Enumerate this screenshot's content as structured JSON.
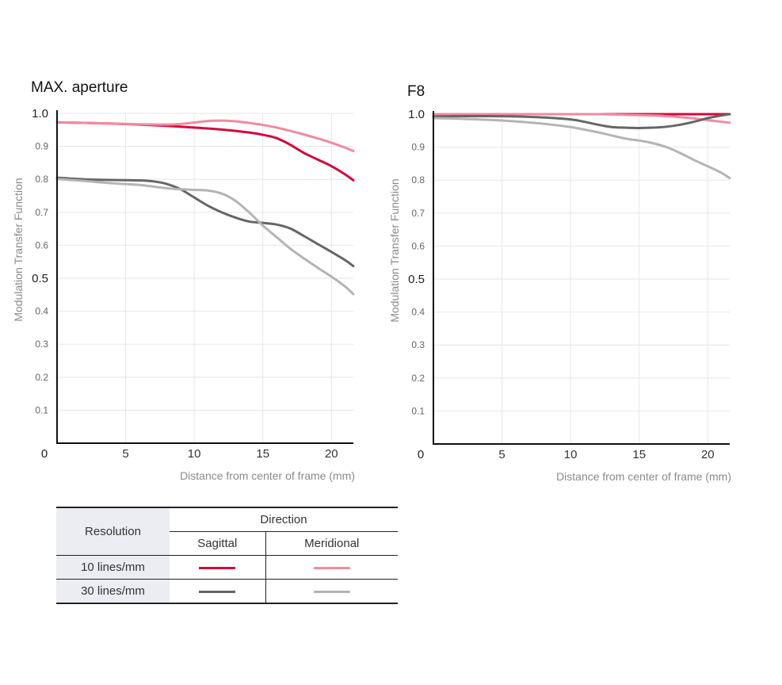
{
  "chart_data": [
    {
      "type": "line",
      "title": "MAX. aperture",
      "ylabel": "Modulation Transfer Function",
      "xlabel": "Distance from center of frame (mm)",
      "xlim": [
        0,
        21.6
      ],
      "ylim": [
        0,
        1.0
      ],
      "origin_label": "0",
      "x_ticks": [
        "5",
        "10",
        "15",
        "20"
      ],
      "y_ticks": [
        "0.1",
        "0.2",
        "0.3",
        "0.4",
        "0.5",
        "0.6",
        "0.7",
        "0.8",
        "0.9",
        "1.0"
      ],
      "grid": true,
      "series": [
        {
          "key": "s10",
          "color": "#d6083b",
          "x": [
            0,
            2,
            4,
            6,
            8,
            10,
            12,
            14,
            15,
            16,
            17,
            18,
            19,
            20,
            21,
            21.6
          ],
          "y": [
            0.973,
            0.971,
            0.969,
            0.966,
            0.962,
            0.957,
            0.951,
            0.942,
            0.935,
            0.925,
            0.905,
            0.88,
            0.86,
            0.84,
            0.815,
            0.797
          ]
        },
        {
          "key": "m10",
          "color": "#f18aa0",
          "x": [
            0,
            2,
            4,
            6,
            8,
            9,
            10,
            11,
            12,
            13,
            14,
            15,
            16,
            17,
            18,
            19,
            20,
            21,
            21.6
          ],
          "y": [
            0.973,
            0.971,
            0.969,
            0.967,
            0.966,
            0.968,
            0.972,
            0.977,
            0.978,
            0.976,
            0.971,
            0.965,
            0.957,
            0.947,
            0.936,
            0.924,
            0.911,
            0.896,
            0.886
          ]
        },
        {
          "key": "s30",
          "color": "#666666",
          "x": [
            0,
            2,
            4,
            6,
            7,
            8,
            9,
            10,
            11,
            12,
            13,
            14,
            15,
            16,
            17,
            18,
            19,
            20,
            21,
            21.6
          ],
          "y": [
            0.805,
            0.8,
            0.798,
            0.797,
            0.794,
            0.786,
            0.77,
            0.745,
            0.72,
            0.7,
            0.684,
            0.672,
            0.668,
            0.663,
            0.651,
            0.628,
            0.604,
            0.58,
            0.555,
            0.537
          ]
        },
        {
          "key": "m30",
          "color": "#b4b4b4",
          "x": [
            0,
            2,
            4,
            6,
            8,
            9,
            10,
            11,
            12,
            13,
            14,
            15,
            16,
            17,
            18,
            19,
            20,
            21,
            21.6
          ],
          "y": [
            0.801,
            0.795,
            0.788,
            0.783,
            0.773,
            0.77,
            0.768,
            0.766,
            0.757,
            0.735,
            0.7,
            0.66,
            0.625,
            0.59,
            0.56,
            0.532,
            0.505,
            0.475,
            0.452
          ]
        }
      ]
    },
    {
      "type": "line",
      "title": "F8",
      "ylabel": "Modulation Transfer Function",
      "xlabel": "Distance from center of frame (mm)",
      "xlim": [
        0,
        21.6
      ],
      "ylim": [
        0,
        1.0
      ],
      "origin_label": "0",
      "x_ticks": [
        "5",
        "10",
        "15",
        "20"
      ],
      "y_ticks": [
        "0.1",
        "0.2",
        "0.3",
        "0.4",
        "0.5",
        "0.6",
        "0.7",
        "0.8",
        "0.9",
        "1.0"
      ],
      "grid": true,
      "series": [
        {
          "key": "s10",
          "color": "#d6083b",
          "x": [
            0,
            5,
            10,
            15,
            20,
            21.6
          ],
          "y": [
            1.0,
            1.0,
            1.0,
            1.0,
            1.0,
            1.0
          ]
        },
        {
          "key": "m10",
          "color": "#f18aa0",
          "x": [
            0,
            5,
            10,
            12,
            14,
            16,
            17,
            18,
            19,
            20,
            21,
            21.6
          ],
          "y": [
            1.0,
            1.0,
            1.0,
            1.0,
            0.998,
            0.996,
            0.994,
            0.991,
            0.987,
            0.982,
            0.977,
            0.974
          ]
        },
        {
          "key": "s30",
          "color": "#666666",
          "x": [
            0,
            2,
            4,
            6,
            8,
            10,
            11,
            12,
            13,
            14,
            15,
            16,
            17,
            18,
            19,
            20,
            21,
            21.6
          ],
          "y": [
            0.993,
            0.994,
            0.994,
            0.993,
            0.99,
            0.984,
            0.977,
            0.968,
            0.961,
            0.959,
            0.958,
            0.959,
            0.962,
            0.968,
            0.977,
            0.988,
            0.996,
            1.0
          ]
        },
        {
          "key": "m30",
          "color": "#b4b4b4",
          "x": [
            0,
            2,
            4,
            6,
            8,
            10,
            12,
            14,
            15,
            16,
            17,
            18,
            19,
            20,
            21,
            21.6
          ],
          "y": [
            0.988,
            0.986,
            0.983,
            0.978,
            0.971,
            0.961,
            0.945,
            0.926,
            0.92,
            0.912,
            0.9,
            0.882,
            0.861,
            0.842,
            0.822,
            0.806
          ]
        }
      ]
    }
  ],
  "legend": {
    "resolution_header": "Resolution",
    "direction_header": "Direction",
    "sagittal_label": "Sagittal",
    "meridional_label": "Meridional",
    "rows": [
      {
        "label": "10 lines/mm",
        "sagittal_color": "#d6083b",
        "meridional_color": "#f18aa0"
      },
      {
        "label": "30 lines/mm",
        "sagittal_color": "#666666",
        "meridional_color": "#b4b4b4"
      }
    ]
  }
}
